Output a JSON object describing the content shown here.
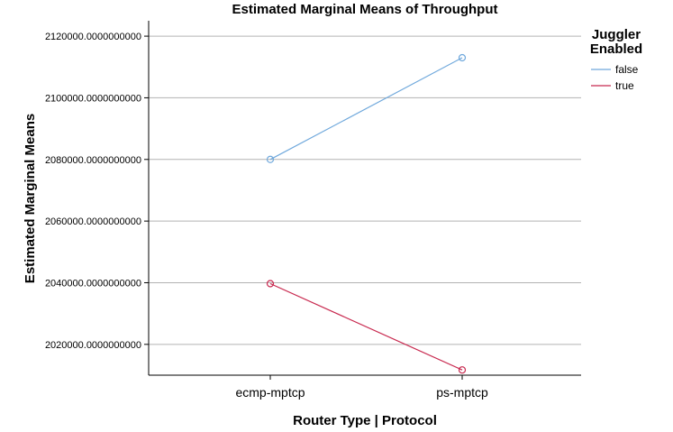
{
  "chart_data": {
    "type": "line",
    "title": "Estimated Marginal Means of Throughput",
    "xlabel": "Router Type | Protocol",
    "ylabel": "Estimated Marginal Means",
    "categories": [
      "ecmp-mptcp",
      "ps-mptcp"
    ],
    "ylim": [
      2010000,
      2125000
    ],
    "yticks": [
      2020000,
      2040000,
      2060000,
      2080000,
      2100000,
      2120000
    ],
    "ytick_labels": [
      "2020000.0000000000",
      "2040000.0000000000",
      "2060000.0000000000",
      "2080000.0000000000",
      "2100000.0000000000",
      "2120000.0000000000"
    ],
    "grid": "horizontal",
    "legend": {
      "title_line1": "Juggler",
      "title_line2": "Enabled",
      "placement": "top-right"
    },
    "series": [
      {
        "name": "false",
        "color": "#6fa8dc",
        "values": [
          2080000,
          2113000
        ]
      },
      {
        "name": "true",
        "color": "#c8294f",
        "values": [
          2039700,
          2011700
        ]
      }
    ]
  }
}
